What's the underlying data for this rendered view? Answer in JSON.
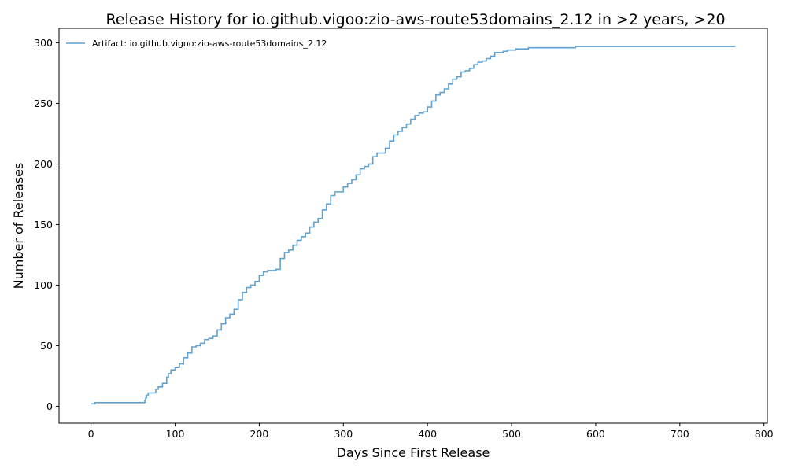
{
  "chart_data": {
    "type": "line",
    "title": "Release History for io.github.vigoo:zio-aws-route53domains_2.12 in >2 years, >20",
    "xlabel": "Days Since First Release",
    "ylabel": "Number of Releases",
    "xlim": [
      -38,
      804
    ],
    "ylim": [
      -14,
      312
    ],
    "xticks": [
      0,
      100,
      200,
      300,
      400,
      500,
      600,
      700,
      800
    ],
    "yticks": [
      0,
      50,
      100,
      150,
      200,
      250,
      300
    ],
    "grid": false,
    "legend_position": "top-left",
    "step": true,
    "series": [
      {
        "name": "Artifact: io.github.vigoo:zio-aws-route53domains_2.12",
        "color": "#5fa2d0",
        "x": [
          0,
          5,
          63,
          64,
          65,
          66,
          68,
          70,
          77,
          80,
          85,
          90,
          92,
          95,
          100,
          105,
          110,
          115,
          120,
          125,
          130,
          135,
          140,
          145,
          150,
          155,
          160,
          165,
          170,
          175,
          180,
          185,
          190,
          195,
          200,
          205,
          210,
          220,
          225,
          230,
          235,
          240,
          245,
          250,
          255,
          260,
          265,
          270,
          275,
          280,
          285,
          290,
          295,
          300,
          305,
          310,
          315,
          320,
          325,
          330,
          335,
          340,
          345,
          350,
          355,
          360,
          365,
          370,
          375,
          380,
          385,
          390,
          395,
          400,
          405,
          410,
          415,
          420,
          425,
          430,
          435,
          440,
          445,
          450,
          455,
          460,
          465,
          470,
          475,
          480,
          485,
          490,
          495,
          500,
          505,
          510,
          520,
          576,
          663,
          677,
          766
        ],
        "y": [
          2,
          3,
          3,
          5,
          7,
          9,
          11,
          11,
          14,
          16,
          19,
          24,
          27,
          30,
          32,
          35,
          40,
          44,
          49,
          50,
          52,
          55,
          56,
          58,
          63,
          68,
          73,
          76,
          80,
          88,
          94,
          98,
          100,
          103,
          108,
          111,
          112,
          113,
          122,
          127,
          129,
          133,
          137,
          140,
          143,
          148,
          152,
          155,
          162,
          167,
          174,
          177,
          177,
          181,
          184,
          187,
          191,
          196,
          198,
          200,
          206,
          209,
          209,
          213,
          219,
          224,
          227,
          230,
          233,
          237,
          240,
          242,
          243,
          247,
          252,
          257,
          259,
          262,
          266,
          270,
          272,
          276,
          277,
          279,
          282,
          284,
          285,
          287,
          289,
          292,
          292,
          293,
          294,
          294,
          295,
          295,
          296,
          297,
          297,
          297,
          297
        ]
      }
    ]
  }
}
